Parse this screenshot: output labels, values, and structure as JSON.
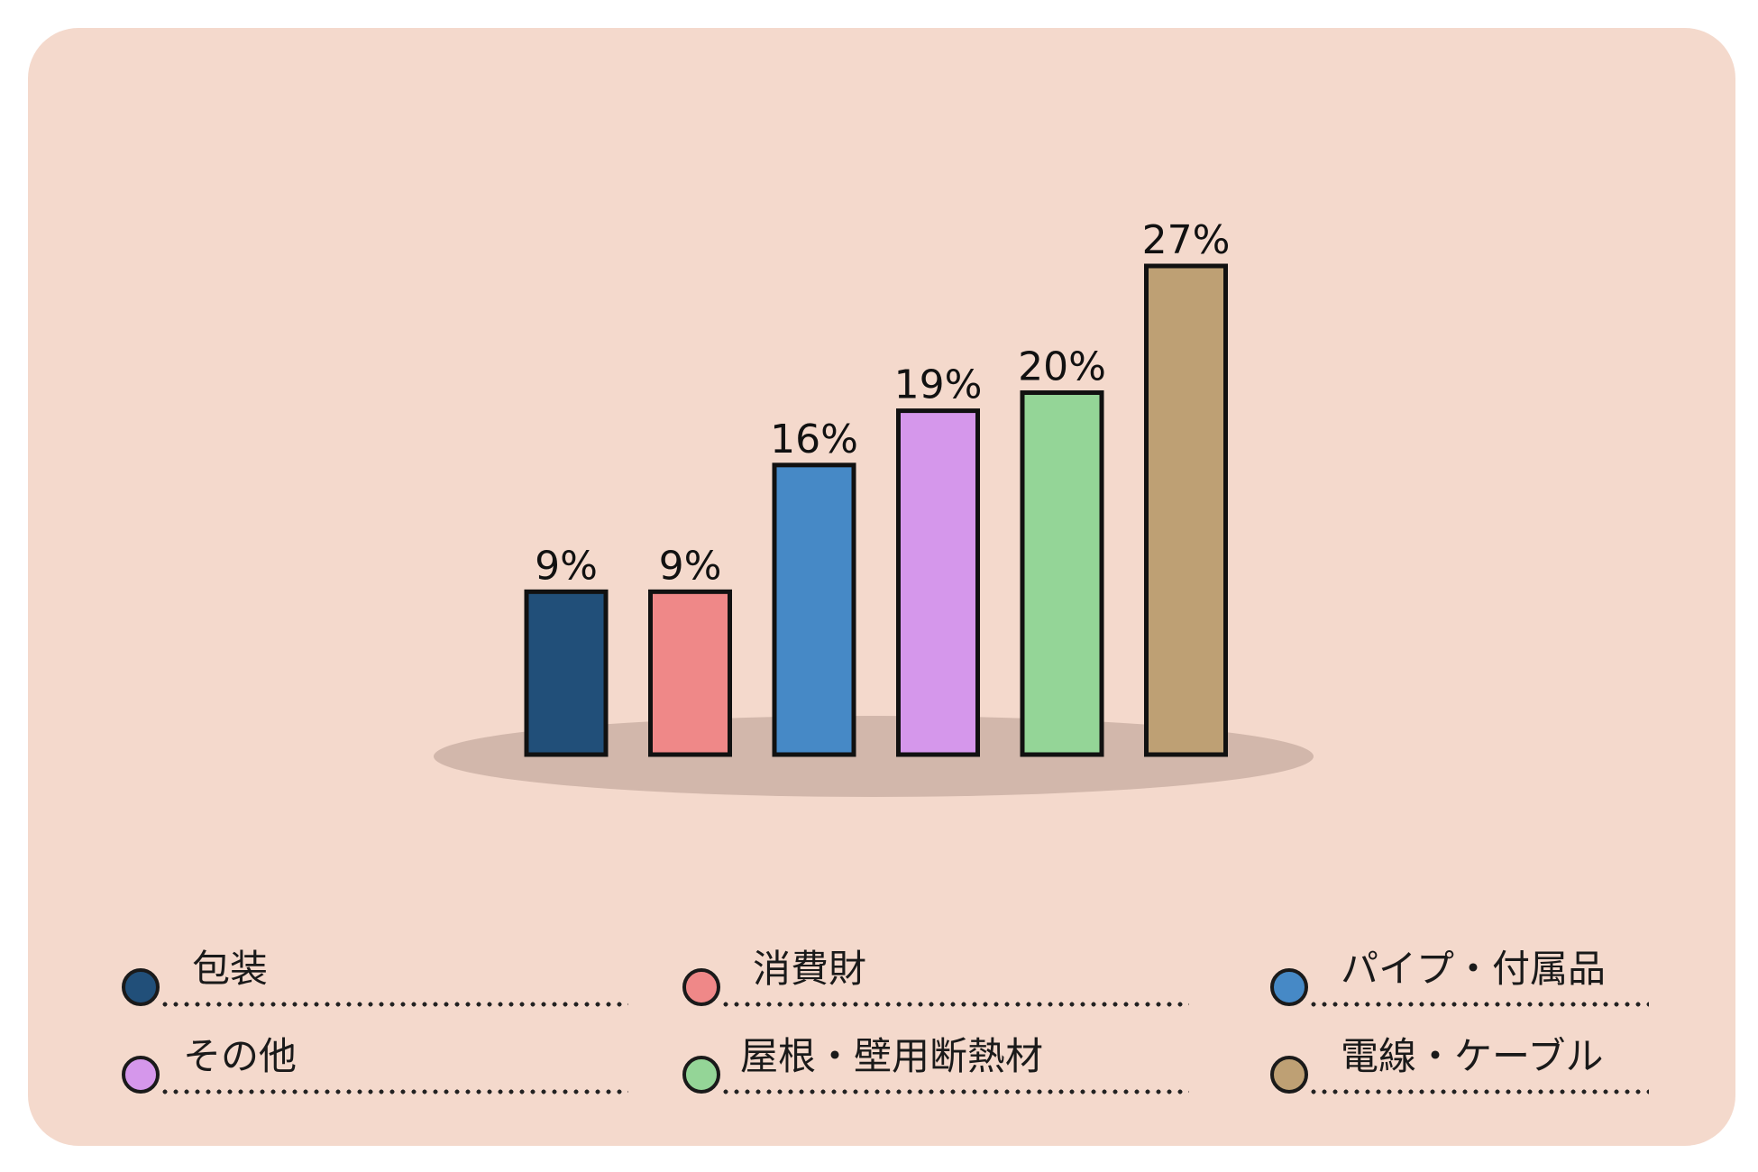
{
  "chart_data": {
    "type": "bar",
    "categories": [
      "包装",
      "消費財",
      "パイプ・付属品",
      "その他",
      "屋根・壁用断熱材",
      "電線・ケーブル"
    ],
    "values": [
      9,
      9,
      16,
      19,
      20,
      27
    ],
    "value_labels": [
      "9%",
      "9%",
      "16%",
      "19%",
      "20%",
      "27%"
    ],
    "colors": [
      "#214f79",
      "#ef8888",
      "#4689c6",
      "#d597eb",
      "#94d597",
      "#bea074"
    ],
    "title": "",
    "xlabel": "",
    "ylabel": "",
    "unit": "%",
    "ylim": [
      0,
      27
    ],
    "grid": false,
    "legend_position": "bottom"
  },
  "legend": {
    "items": [
      {
        "label": "包装",
        "color": "#214f79"
      },
      {
        "label": "消費財",
        "color": "#ef8888"
      },
      {
        "label": "パイプ・付属品",
        "color": "#4689c6"
      },
      {
        "label": "その他",
        "color": "#d597eb"
      },
      {
        "label": "屋根・壁用断熱材",
        "color": "#94d597"
      },
      {
        "label": "電線・ケーブル",
        "color": "#bea074"
      }
    ]
  },
  "colors": {
    "background": "#f4d9cc",
    "shadow": "#d2b7ab",
    "outline": "#111111"
  }
}
